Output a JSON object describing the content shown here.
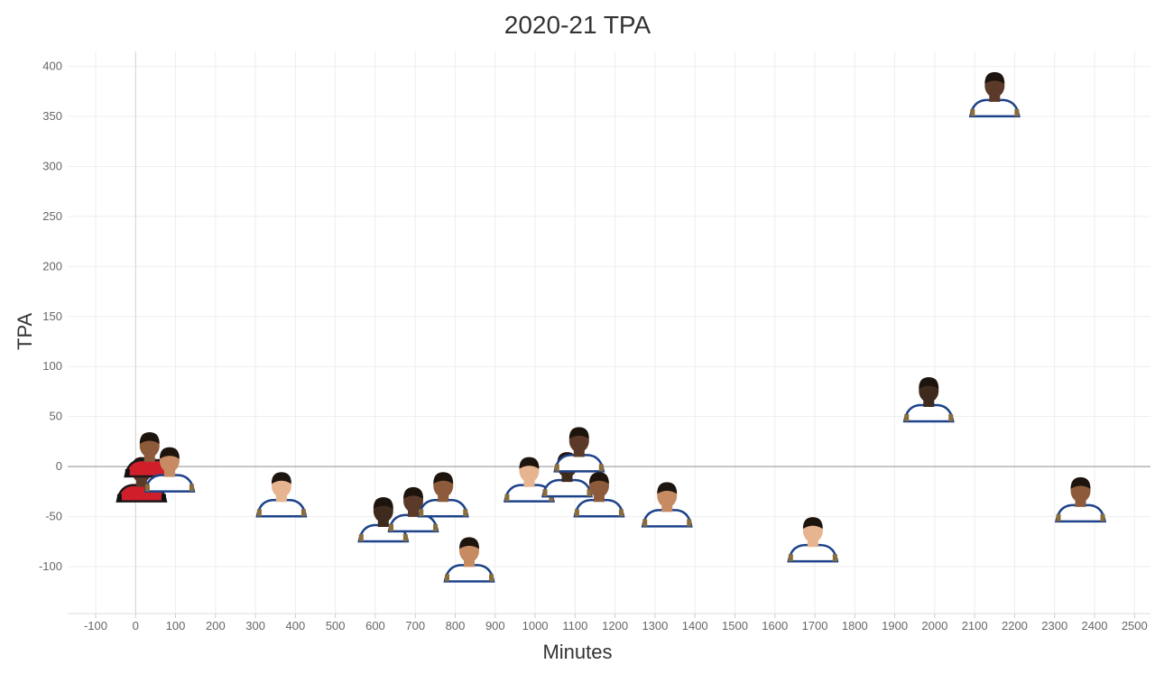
{
  "chart_data": {
    "type": "scatter",
    "title": "2020-21 TPA",
    "xlabel": "Minutes",
    "ylabel": "TPA",
    "xlim": [
      -170,
      2540
    ],
    "ylim": [
      -147,
      415
    ],
    "xticks": [
      -100,
      0,
      100,
      200,
      300,
      400,
      500,
      600,
      700,
      800,
      900,
      1000,
      1100,
      1200,
      1300,
      1400,
      1500,
      1600,
      1700,
      1800,
      1900,
      2000,
      2100,
      2200,
      2300,
      2400,
      2500
    ],
    "yticks": [
      -100,
      -50,
      0,
      50,
      100,
      150,
      200,
      250,
      300,
      350,
      400
    ],
    "grid": true,
    "marker": "player-headshot",
    "points": [
      {
        "x": 15,
        "y": -15,
        "jersey": "red"
      },
      {
        "x": 35,
        "y": 10,
        "jersey": "red"
      },
      {
        "x": 85,
        "y": -5,
        "jersey": "white"
      },
      {
        "x": 365,
        "y": -30,
        "jersey": "white"
      },
      {
        "x": 620,
        "y": -55,
        "jersey": "white"
      },
      {
        "x": 695,
        "y": -45,
        "jersey": "white"
      },
      {
        "x": 770,
        "y": -30,
        "jersey": "white"
      },
      {
        "x": 835,
        "y": -95,
        "jersey": "white"
      },
      {
        "x": 985,
        "y": -15,
        "jersey": "white"
      },
      {
        "x": 1080,
        "y": -10,
        "jersey": "white"
      },
      {
        "x": 1110,
        "y": 15,
        "jersey": "white"
      },
      {
        "x": 1160,
        "y": -30,
        "jersey": "white"
      },
      {
        "x": 1330,
        "y": -40,
        "jersey": "white"
      },
      {
        "x": 1695,
        "y": -75,
        "jersey": "white"
      },
      {
        "x": 1985,
        "y": 65,
        "jersey": "white"
      },
      {
        "x": 2150,
        "y": 370,
        "jersey": "white"
      },
      {
        "x": 2365,
        "y": -35,
        "jersey": "white"
      }
    ]
  }
}
